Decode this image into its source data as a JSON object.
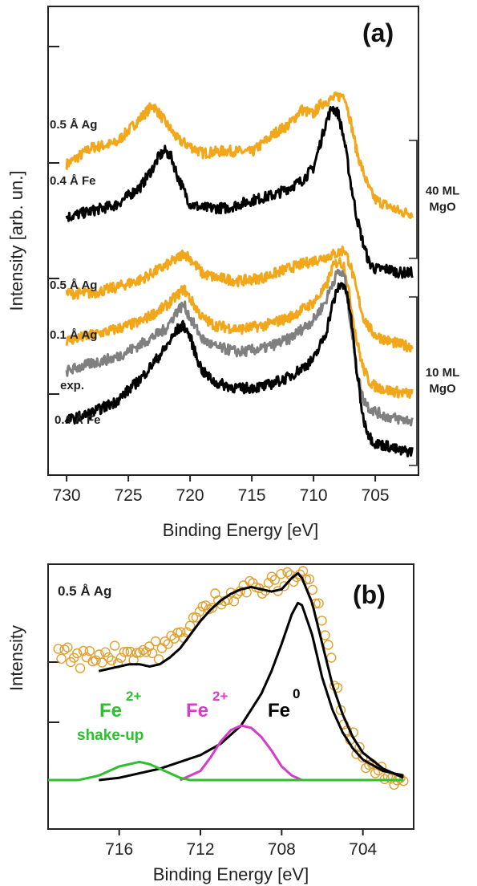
{
  "chart_data": [
    {
      "type": "line",
      "panel_label": "(a)",
      "xlabel": "Binding Energy [eV]",
      "ylabel": "Intensity [arb. un.]",
      "xlim": [
        731.5,
        701.5
      ],
      "x_ticks": [
        730,
        725,
        720,
        715,
        710,
        705
      ],
      "x_tick_labels": [
        "730",
        "725",
        "720",
        "715",
        "710",
        "705"
      ],
      "groups": [
        {
          "label_line1": "40 ML",
          "label_line2": "MgO"
        },
        {
          "label_line1": "10 ML",
          "label_line2": "MgO"
        }
      ],
      "series": [
        {
          "name": "0.5 Å Ag",
          "group": 0,
          "color": "#f2a71b",
          "offset": 0.0,
          "x": [
            730,
            728,
            726,
            724.5,
            723,
            721,
            719,
            717,
            715,
            713,
            712,
            711,
            710,
            709.5,
            709,
            708.5,
            708,
            707.5,
            707,
            706.5,
            706,
            705.5,
            705,
            704,
            703,
            702
          ],
          "y": [
            0.1,
            0.122,
            0.128,
            0.153,
            0.178,
            0.133,
            0.115,
            0.118,
            0.116,
            0.143,
            0.152,
            0.172,
            0.166,
            0.178,
            0.183,
            0.186,
            0.189,
            0.192,
            0.157,
            0.117,
            0.091,
            0.068,
            0.054,
            0.046,
            0.038,
            0.036
          ]
        },
        {
          "name": "0.4 Å Fe",
          "group": 0,
          "color": "#000000",
          "offset": 0.0,
          "x": [
            730,
            728,
            726,
            724,
            723,
            722.5,
            722,
            721.5,
            721,
            720,
            719,
            717,
            715,
            713,
            711,
            710,
            709.5,
            709,
            708.5,
            708,
            707.5,
            707,
            706.5,
            706,
            705.5,
            705,
            704,
            703,
            702
          ],
          "y": [
            0.031,
            0.039,
            0.047,
            0.071,
            0.096,
            0.111,
            0.118,
            0.109,
            0.084,
            0.048,
            0.043,
            0.043,
            0.053,
            0.061,
            0.078,
            0.096,
            0.125,
            0.155,
            0.175,
            0.167,
            0.131,
            0.077,
            0.031,
            -0.002,
            -0.029,
            -0.037,
            -0.037,
            -0.042,
            -0.042
          ]
        },
        {
          "name": "0.5 Å Ag",
          "group": 1,
          "color": "#f2a71b",
          "offset": 0.0,
          "x": [
            730,
            728,
            726,
            724,
            722,
            721,
            720.5,
            720,
            719,
            718,
            716,
            714,
            712,
            710,
            709,
            708,
            707.5,
            707,
            706.5,
            706,
            705.5,
            705,
            704,
            703,
            702
          ],
          "y": [
            -0.069,
            -0.069,
            -0.061,
            -0.051,
            -0.033,
            -0.023,
            -0.016,
            -0.023,
            -0.043,
            -0.048,
            -0.053,
            -0.048,
            -0.036,
            -0.026,
            -0.021,
            -0.016,
            -0.011,
            -0.033,
            -0.066,
            -0.099,
            -0.114,
            -0.124,
            -0.131,
            -0.136,
            -0.139
          ]
        },
        {
          "name": "0.1 Å Ag",
          "group": 1,
          "color": "#f2a71b",
          "offset": 0.0,
          "x": [
            730,
            728,
            726,
            724,
            722,
            721,
            720.5,
            720,
            719,
            718,
            716,
            714,
            712,
            710,
            709,
            708.5,
            708,
            707.5,
            707,
            706.5,
            706,
            705.5,
            705,
            704,
            703,
            702
          ],
          "y": [
            -0.131,
            -0.124,
            -0.116,
            -0.106,
            -0.086,
            -0.071,
            -0.063,
            -0.076,
            -0.101,
            -0.111,
            -0.116,
            -0.111,
            -0.101,
            -0.081,
            -0.061,
            -0.036,
            -0.026,
            -0.033,
            -0.081,
            -0.131,
            -0.166,
            -0.184,
            -0.191,
            -0.196,
            -0.199,
            -0.201
          ]
        },
        {
          "name": "exp.",
          "group": 1,
          "color": "#808080",
          "offset": 0.0,
          "x": [
            730,
            728,
            726,
            724,
            722,
            721,
            720.5,
            720,
            719,
            718,
            716,
            714,
            712,
            710,
            709,
            708.5,
            708,
            707.5,
            707,
            706.5,
            706,
            705.5,
            705,
            704,
            703,
            702
          ],
          "y": [
            -0.171,
            -0.161,
            -0.153,
            -0.136,
            -0.116,
            -0.091,
            -0.084,
            -0.101,
            -0.129,
            -0.139,
            -0.146,
            -0.141,
            -0.129,
            -0.104,
            -0.079,
            -0.056,
            -0.041,
            -0.046,
            -0.106,
            -0.171,
            -0.206,
            -0.219,
            -0.224,
            -0.231,
            -0.234,
            -0.236
          ]
        },
        {
          "name": "0.4 Å Fe",
          "group": 1,
          "color": "#000000",
          "offset": 0.0,
          "x": [
            730,
            728,
            726,
            724,
            722,
            721,
            720.5,
            720,
            719.5,
            719,
            718,
            716,
            714,
            712,
            710,
            709,
            708.5,
            708,
            707.5,
            707,
            706.5,
            706,
            705.5,
            705,
            704,
            703,
            702
          ],
          "y": [
            -0.236,
            -0.226,
            -0.211,
            -0.181,
            -0.141,
            -0.116,
            -0.111,
            -0.126,
            -0.151,
            -0.171,
            -0.186,
            -0.194,
            -0.191,
            -0.179,
            -0.156,
            -0.121,
            -0.086,
            -0.061,
            -0.056,
            -0.096,
            -0.171,
            -0.231,
            -0.256,
            -0.266,
            -0.269,
            -0.276,
            -0.276
          ]
        }
      ]
    },
    {
      "type": "line",
      "panel_label": "(b)",
      "xlabel": "Binding Energy [eV]",
      "ylabel": "Intensity",
      "xlim": [
        719.5,
        701.5
      ],
      "x_ticks": [
        716,
        712,
        708,
        704
      ],
      "x_tick_labels": [
        "716",
        "712",
        "708",
        "704"
      ],
      "annotation": "0.5 Å Ag",
      "components": [
        {
          "label": "Fe",
          "superscript": "2+",
          "line2": "shake-up",
          "color": "#2ec02e"
        },
        {
          "label": "Fe",
          "superscript": "2+",
          "line2": "",
          "color": "#d63cc8"
        },
        {
          "label": "Fe",
          "superscript": "0",
          "line2": "",
          "color": "#000000"
        }
      ],
      "series": [
        {
          "name": "data",
          "color": "#e0a030",
          "style": "markers",
          "x": [
            719,
            718.5,
            718,
            717.5,
            717,
            716.5,
            716,
            715.5,
            715,
            714.5,
            714,
            713.5,
            713,
            712.5,
            712,
            711.5,
            711,
            710.5,
            710,
            709.5,
            709,
            708.5,
            708,
            707.5,
            707,
            706.5,
            706,
            705.5,
            705,
            704.5,
            704,
            703.5,
            703,
            702.5,
            702
          ],
          "y": [
            0.58,
            0.55,
            0.53,
            0.54,
            0.55,
            0.56,
            0.55,
            0.57,
            0.56,
            0.58,
            0.57,
            0.6,
            0.64,
            0.69,
            0.73,
            0.77,
            0.81,
            0.82,
            0.84,
            0.85,
            0.84,
            0.86,
            0.87,
            0.9,
            0.92,
            0.85,
            0.7,
            0.48,
            0.3,
            0.18,
            0.1,
            0.06,
            0.03,
            0.02,
            0.01
          ]
        },
        {
          "name": "fit",
          "color": "#000000",
          "style": "line",
          "x": [
            717,
            716.5,
            716,
            715.5,
            715,
            714.5,
            714,
            713.5,
            713,
            712.5,
            712,
            711.5,
            711,
            710.5,
            710,
            709.5,
            709,
            708.5,
            708,
            707.5,
            707.2,
            707,
            706.5,
            706,
            705.5,
            705,
            704.5,
            704,
            703,
            702
          ],
          "y": [
            0.48,
            0.49,
            0.5,
            0.51,
            0.51,
            0.5,
            0.51,
            0.54,
            0.58,
            0.64,
            0.7,
            0.75,
            0.79,
            0.82,
            0.84,
            0.85,
            0.84,
            0.83,
            0.84,
            0.89,
            0.91,
            0.89,
            0.78,
            0.6,
            0.42,
            0.29,
            0.19,
            0.12,
            0.05,
            0.01
          ]
        },
        {
          "name": "Fe0",
          "color": "#000000",
          "style": "line",
          "x": [
            717,
            716,
            715,
            714,
            713,
            712,
            711,
            710,
            709,
            708.5,
            708,
            707.5,
            707.2,
            707,
            706.5,
            706,
            705.5,
            705,
            704.5,
            704,
            703,
            702
          ],
          "y": [
            0.0,
            0.01,
            0.03,
            0.05,
            0.08,
            0.11,
            0.16,
            0.24,
            0.38,
            0.48,
            0.6,
            0.73,
            0.78,
            0.77,
            0.64,
            0.45,
            0.31,
            0.21,
            0.14,
            0.09,
            0.04,
            0.02
          ]
        },
        {
          "name": "Fe2+",
          "color": "#d63cc8",
          "style": "line",
          "x": [
            713,
            712,
            711.5,
            711,
            710.5,
            710,
            709.5,
            709,
            708.5,
            708,
            707.5,
            707
          ],
          "y": [
            0.0,
            0.04,
            0.1,
            0.17,
            0.22,
            0.24,
            0.23,
            0.19,
            0.13,
            0.06,
            0.02,
            0.0
          ]
        },
        {
          "name": "Fe2+ shake-up",
          "color": "#2ec02e",
          "style": "line",
          "x": [
            719.5,
            718,
            717,
            716.5,
            716,
            715.5,
            715,
            714.5,
            714,
            713.5,
            713,
            712.5,
            712,
            711,
            710,
            705,
            702
          ],
          "y": [
            0.0,
            0.0,
            0.02,
            0.04,
            0.06,
            0.07,
            0.08,
            0.07,
            0.05,
            0.03,
            0.01,
            0.0,
            0.0,
            0.0,
            0.0,
            0.0,
            0.0
          ]
        }
      ]
    }
  ]
}
